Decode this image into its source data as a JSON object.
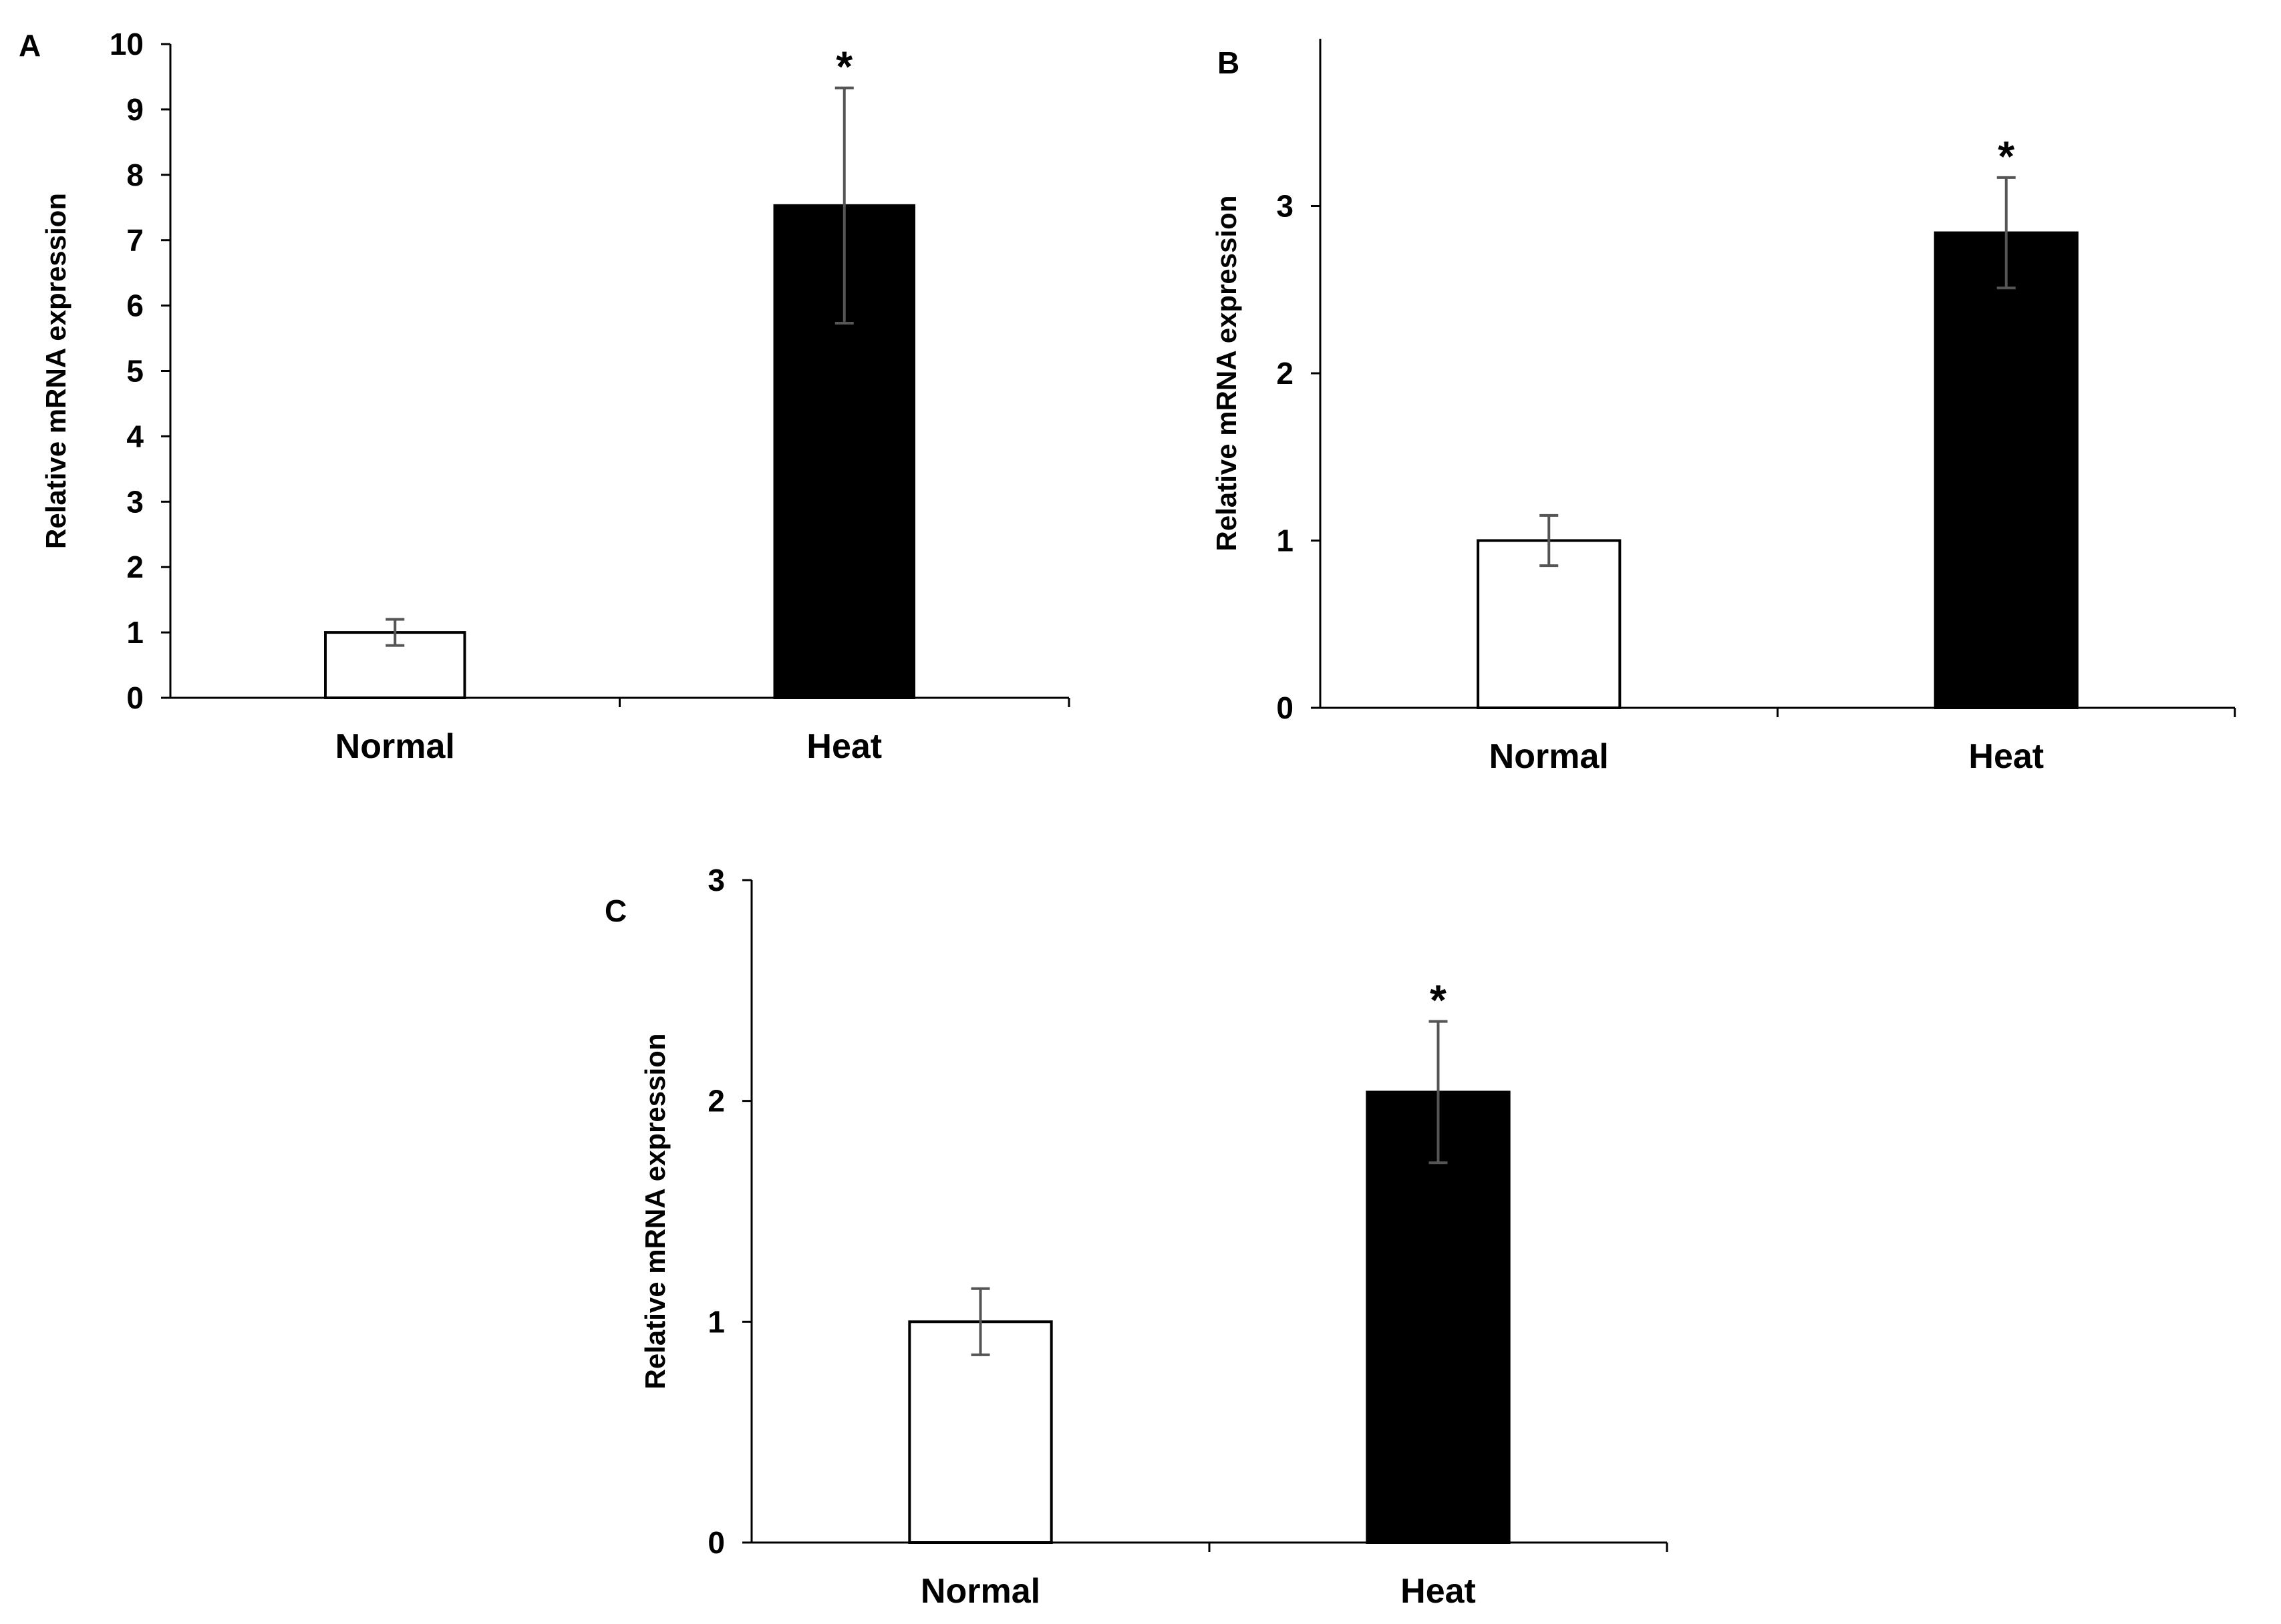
{
  "chart_data": [
    {
      "type": "bar",
      "panel": "A",
      "title": "",
      "xlabel": "",
      "ylabel": "Relative mRNA expression",
      "categories": [
        "Normal",
        "Heat"
      ],
      "values": [
        1.0,
        7.53
      ],
      "errors": [
        0.2,
        1.8
      ],
      "significance": [
        "",
        "*"
      ],
      "bar_colors": [
        "#ffffff",
        "#000000"
      ],
      "ylim": [
        0,
        10
      ],
      "yticks": [
        0,
        1,
        2,
        3,
        4,
        5,
        6,
        7,
        8,
        9,
        10
      ],
      "ytick_labels": [
        "0",
        "1",
        "2",
        "3",
        "4",
        "5",
        "6",
        "7",
        "8",
        "9",
        "10"
      ],
      "grid": false
    },
    {
      "type": "bar",
      "panel": "B",
      "title": "",
      "xlabel": "",
      "ylabel": "Relative mRNA expression",
      "categories": [
        "Normal",
        "Heat"
      ],
      "values": [
        1.0,
        2.84
      ],
      "errors": [
        0.15,
        0.33
      ],
      "significance": [
        "",
        "*"
      ],
      "bar_colors": [
        "#ffffff",
        "#000000"
      ],
      "ylim": [
        0,
        4
      ],
      "yticks": [
        0,
        1,
        2,
        3
      ],
      "ytick_labels": [
        "0",
        "1",
        "2",
        "3"
      ],
      "grid": false
    },
    {
      "type": "bar",
      "panel": "C",
      "title": "",
      "xlabel": "",
      "ylabel": "Relative mRNA expression",
      "categories": [
        "Normal",
        "Heat"
      ],
      "values": [
        1.0,
        2.04
      ],
      "errors": [
        0.15,
        0.32
      ],
      "significance": [
        "",
        "*"
      ],
      "bar_colors": [
        "#ffffff",
        "#000000"
      ],
      "ylim": [
        0,
        3
      ],
      "yticks": [
        0,
        1,
        2,
        3
      ],
      "ytick_labels": [
        "0",
        "1",
        "2",
        "3"
      ],
      "grid": false
    }
  ]
}
